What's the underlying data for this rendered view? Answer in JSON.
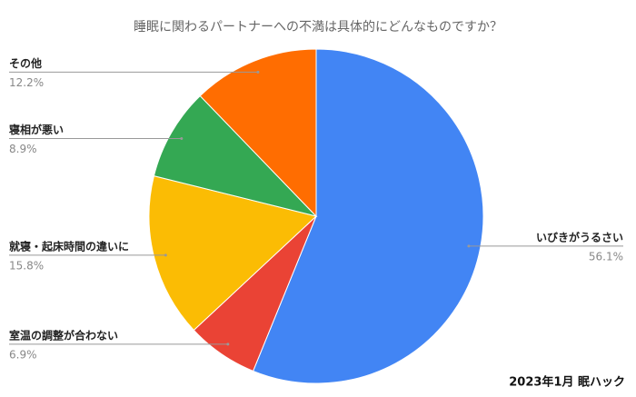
{
  "chart_data": {
    "type": "pie",
    "title": "睡眠に関わるパートナーへの不満は具体的にどんなものですか？",
    "categories": [
      "いびきがうるさい",
      "室温の調整が合わない",
      "就寝・起床時間の違いに",
      "寝相が悪い",
      "その他"
    ],
    "values": [
      56.1,
      6.9,
      15.8,
      8.9,
      12.2
    ],
    "value_labels": [
      "56.1%",
      "6.9%",
      "15.8%",
      "8.9%",
      "12.2%"
    ],
    "colors": [
      "#4285f4",
      "#ea4335",
      "#fbbc04",
      "#34a853",
      "#ff6d01"
    ],
    "source": "2023年1月 眠ハック"
  }
}
